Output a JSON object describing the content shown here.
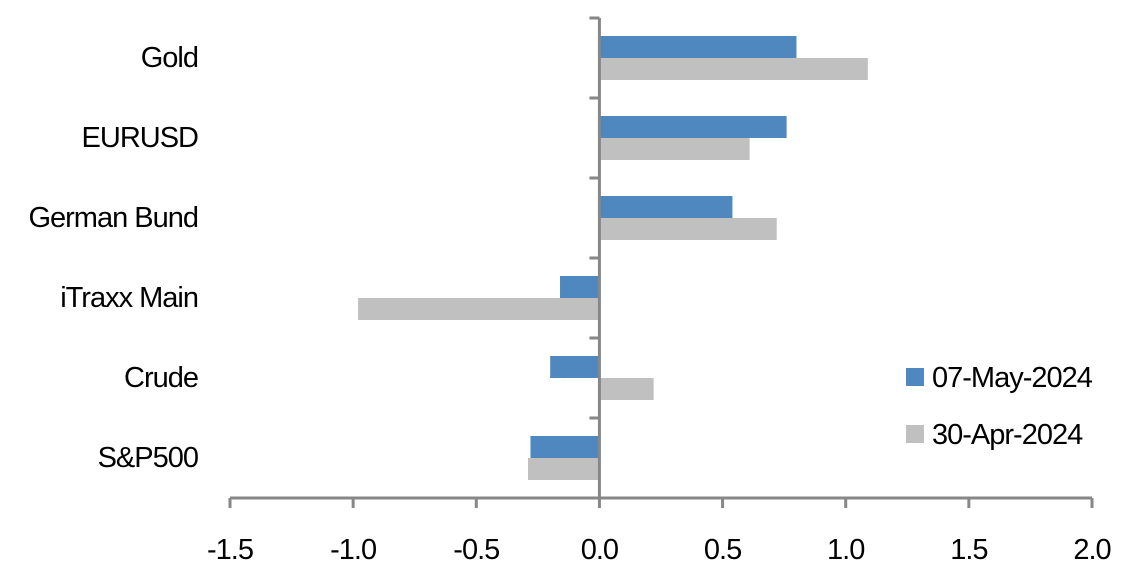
{
  "chart_data": {
    "type": "bar",
    "orientation": "horizontal",
    "categories": [
      "Gold",
      "EURUSD",
      "German Bund",
      "iTraxx Main",
      "Crude",
      "S&P500"
    ],
    "series": [
      {
        "name": "07-May-2024",
        "color": "#4f88bf",
        "values": [
          0.8,
          0.76,
          0.54,
          -0.16,
          -0.2,
          -0.28
        ]
      },
      {
        "name": "30-Apr-2024",
        "color": "#c0c0c0",
        "values": [
          1.09,
          0.61,
          0.72,
          -0.98,
          0.22,
          -0.29
        ]
      }
    ],
    "xlim": [
      -1.5,
      2.0
    ],
    "xticks": [
      "-1.5",
      "-1.0",
      "-0.5",
      "0.0",
      "0.5",
      "1.0",
      "1.5",
      "2.0"
    ],
    "title": "",
    "xlabel": "",
    "ylabel": "",
    "grid": false,
    "legend": "bottom-right"
  }
}
